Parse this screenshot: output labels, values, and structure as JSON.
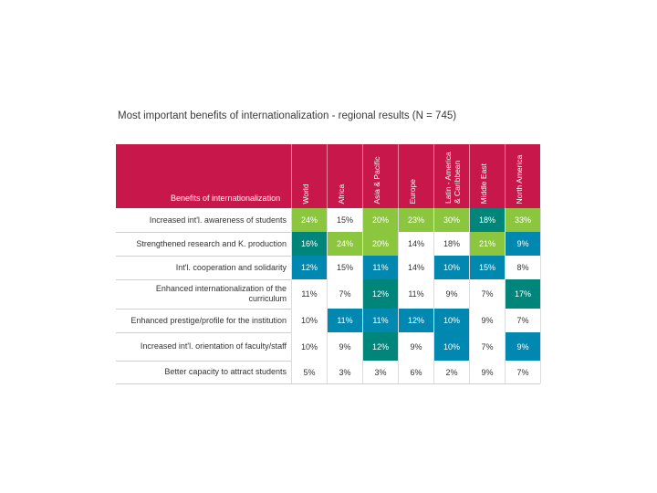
{
  "title": "Most important benefits of internationalization - regional results (N = 745)",
  "colors": {
    "header": "#c8174b",
    "light_green": "#8cc63f",
    "dark_green": "#00857a",
    "blue": "#0088b0",
    "white": "#ffffff"
  },
  "chart_data": {
    "type": "table",
    "title": "Most important benefits of internationalization - regional results (N = 745)",
    "row_header": "Benefits of internationalization",
    "columns": [
      "World",
      "Africa",
      "Asia & Pacific",
      "Europe",
      "Latin - America & Caribbean",
      "Middle East",
      "North America"
    ],
    "rows": [
      {
        "label": "Increased int'l. awareness of students",
        "values": [
          "24%",
          "15%",
          "20%",
          "23%",
          "30%",
          "18%",
          "33%"
        ],
        "shades": [
          "light_green",
          "white",
          "light_green",
          "light_green",
          "light_green",
          "dark_green",
          "light_green"
        ]
      },
      {
        "label": "Strengthened research and K. production",
        "values": [
          "16%",
          "24%",
          "20%",
          "14%",
          "18%",
          "21%",
          "9%"
        ],
        "shades": [
          "dark_green",
          "light_green",
          "light_green",
          "white",
          "white",
          "light_green",
          "blue"
        ]
      },
      {
        "label": "Int'l. cooperation and solidarity",
        "values": [
          "12%",
          "15%",
          "11%",
          "14%",
          "10%",
          "15%",
          "8%"
        ],
        "shades": [
          "blue",
          "white",
          "blue",
          "white",
          "blue",
          "blue",
          "white"
        ]
      },
      {
        "label": "Enhanced internationalization of the curriculum",
        "values": [
          "11%",
          "7%",
          "12%",
          "11%",
          "9%",
          "7%",
          "17%"
        ],
        "shades": [
          "white",
          "white",
          "dark_green",
          "white",
          "white",
          "white",
          "dark_green"
        ]
      },
      {
        "label": "Enhanced prestige/profile for the institution",
        "values": [
          "10%",
          "11%",
          "11%",
          "12%",
          "10%",
          "9%",
          "7%"
        ],
        "shades": [
          "white",
          "blue",
          "blue",
          "blue",
          "blue",
          "white",
          "white"
        ]
      },
      {
        "label": "Increased int'l. orientation of faculty/staff",
        "values": [
          "10%",
          "9%",
          "12%",
          "9%",
          "10%",
          "7%",
          "9%"
        ],
        "shades": [
          "white",
          "white",
          "dark_green",
          "white",
          "blue",
          "white",
          "blue"
        ]
      },
      {
        "label": "Better capacity to attract students",
        "values": [
          "5%",
          "3%",
          "3%",
          "6%",
          "2%",
          "9%",
          "7%"
        ],
        "shades": [
          "white",
          "white",
          "white",
          "white",
          "white",
          "white",
          "white"
        ]
      }
    ]
  }
}
